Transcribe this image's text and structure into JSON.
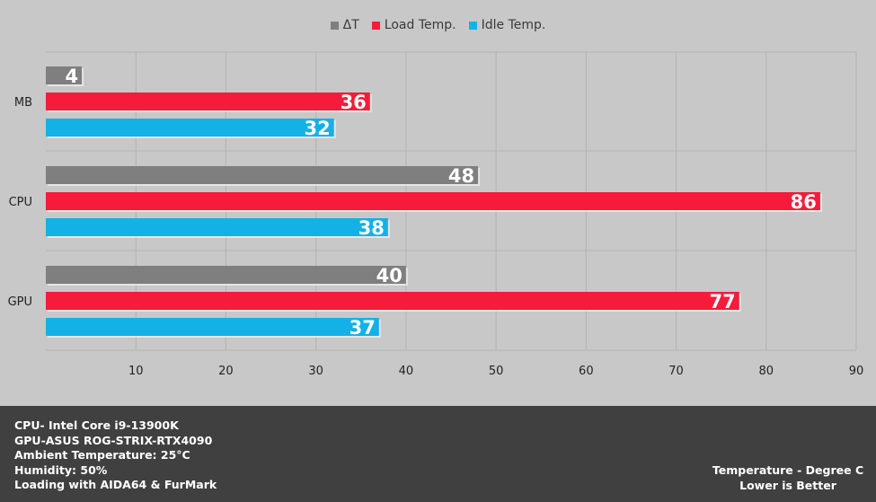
{
  "chart_data": {
    "type": "bar",
    "orientation": "horizontal",
    "categories": [
      "MB",
      "CPU",
      "GPU"
    ],
    "series": [
      {
        "name": "ΔT",
        "color": "#7f7f7f",
        "values": [
          4,
          48,
          40
        ]
      },
      {
        "name": "Load Temp.",
        "color": "#f41c3a",
        "values": [
          36,
          86,
          77
        ]
      },
      {
        "name": "Idle Temp.",
        "color": "#14b1e6",
        "values": [
          32,
          38,
          37
        ]
      }
    ],
    "xlim": [
      0,
      90
    ],
    "xticks": [
      10,
      20,
      30,
      40,
      50,
      60,
      70,
      80,
      90
    ],
    "grid": true,
    "legend_position": "top-center",
    "title": "",
    "xlabel": "",
    "ylabel": ""
  },
  "info": {
    "specs": [
      "CPU- Intel Core i9-13900K",
      "GPU-ASUS ROG-STRIX-RTX4090",
      "Ambient Temperature: 25°C",
      "Humidity: 50%",
      "Loading with AIDA64  & FurMark"
    ],
    "note_line1": "Temperature - Degree C",
    "note_line2": "Lower is Better"
  }
}
